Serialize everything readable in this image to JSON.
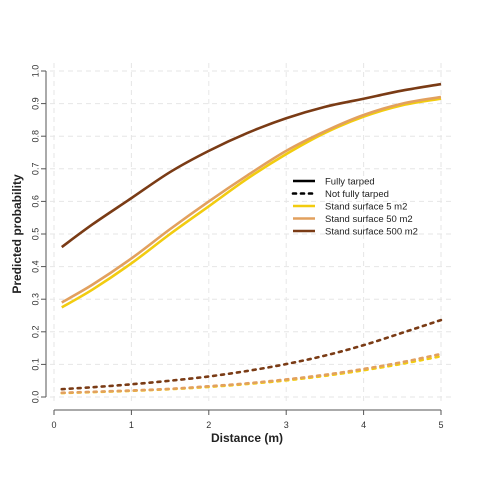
{
  "chart_data": {
    "type": "line",
    "xlabel": "Distance (m)",
    "ylabel": "Predicted probability",
    "xlim": [
      0,
      5
    ],
    "ylim": [
      0,
      1
    ],
    "xticks": [
      "0",
      "1",
      "2",
      "3",
      "4",
      "5"
    ],
    "yticks": [
      "0.0",
      "0.1",
      "0.2",
      "0.3",
      "0.4",
      "0.5",
      "0.6",
      "0.7",
      "0.8",
      "0.9",
      "1.0"
    ],
    "grid": true,
    "legend": {
      "placement": "center-right",
      "entries": [
        {
          "label": "Fully tarped",
          "color": "#000000",
          "dash": "solid"
        },
        {
          "label": "Not fully tarped",
          "color": "#000000",
          "dash": "dotted"
        },
        {
          "label": "Stand surface 5 m2",
          "color": "#F2CC0F",
          "dash": "solid"
        },
        {
          "label": "Stand surface 50 m2",
          "color": "#E2A05E",
          "dash": "solid"
        },
        {
          "label": "Stand surface 500 m2",
          "color": "#7A3B15",
          "dash": "solid"
        }
      ]
    },
    "series": [
      {
        "tarping": "Fully tarped",
        "surface": "5 m2",
        "color": "#F2CC0F",
        "dash": "solid",
        "x": [
          0.1,
          0.5,
          1.0,
          1.5,
          2.0,
          2.5,
          3.0,
          3.5,
          4.0,
          4.5,
          5.0
        ],
        "y": [
          0.275,
          0.33,
          0.41,
          0.5,
          0.585,
          0.67,
          0.745,
          0.81,
          0.86,
          0.895,
          0.915
        ]
      },
      {
        "tarping": "Fully tarped",
        "surface": "50 m2",
        "color": "#E2A05E",
        "dash": "solid",
        "x": [
          0.1,
          0.5,
          1.0,
          1.5,
          2.0,
          2.5,
          3.0,
          3.5,
          4.0,
          4.5,
          5.0
        ],
        "y": [
          0.29,
          0.345,
          0.425,
          0.515,
          0.6,
          0.68,
          0.755,
          0.815,
          0.865,
          0.9,
          0.92
        ]
      },
      {
        "tarping": "Fully tarped",
        "surface": "500 m2",
        "color": "#7A3B15",
        "dash": "solid",
        "x": [
          0.1,
          0.5,
          1.0,
          1.5,
          2.0,
          2.5,
          3.0,
          3.5,
          4.0,
          4.5,
          5.0
        ],
        "y": [
          0.46,
          0.53,
          0.61,
          0.69,
          0.755,
          0.81,
          0.855,
          0.89,
          0.915,
          0.94,
          0.96
        ]
      },
      {
        "tarping": "Not fully tarped",
        "surface": "5 m2",
        "color": "#F2CC0F",
        "dash": "dotted",
        "x": [
          0.1,
          0.5,
          1.0,
          1.5,
          2.0,
          2.5,
          3.0,
          3.5,
          4.0,
          4.5,
          5.0
        ],
        "y": [
          0.012,
          0.015,
          0.019,
          0.024,
          0.031,
          0.04,
          0.051,
          0.065,
          0.082,
          0.102,
          0.125
        ]
      },
      {
        "tarping": "Not fully tarped",
        "surface": "50 m2",
        "color": "#E2A05E",
        "dash": "dotted",
        "x": [
          0.1,
          0.5,
          1.0,
          1.5,
          2.0,
          2.5,
          3.0,
          3.5,
          4.0,
          4.5,
          5.0
        ],
        "y": [
          0.013,
          0.016,
          0.02,
          0.025,
          0.033,
          0.042,
          0.054,
          0.068,
          0.086,
          0.107,
          0.132
        ]
      },
      {
        "tarping": "Not fully tarped",
        "surface": "500 m2",
        "color": "#7A3B15",
        "dash": "dotted",
        "x": [
          0.1,
          0.5,
          1.0,
          1.5,
          2.0,
          2.5,
          3.0,
          3.5,
          4.0,
          4.5,
          5.0
        ],
        "y": [
          0.024,
          0.03,
          0.039,
          0.05,
          0.063,
          0.08,
          0.101,
          0.127,
          0.159,
          0.197,
          0.236
        ]
      }
    ]
  }
}
